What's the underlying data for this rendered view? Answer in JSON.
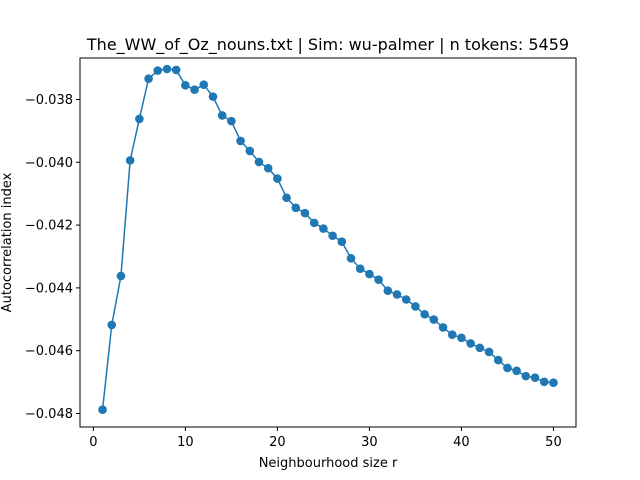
{
  "chart_data": {
    "type": "line",
    "title": "The_WW_of_Oz_nouns.txt | Sim: wu-palmer | n tokens: 5459",
    "xlabel": "Neighbourhood size r",
    "ylabel": "Autocorrelation index",
    "xlim": [
      -1.45,
      52.45
    ],
    "ylim": [
      -0.04843,
      -0.03668
    ],
    "xticks": [
      0,
      10,
      20,
      30,
      40,
      50
    ],
    "xtick_labels": [
      "0",
      "10",
      "20",
      "30",
      "40",
      "50"
    ],
    "yticks": [
      -0.048,
      -0.046,
      -0.044,
      -0.042,
      -0.04,
      -0.038
    ],
    "ytick_labels": [
      "−0.048",
      "−0.046",
      "−0.044",
      "−0.042",
      "−0.040",
      "−0.038"
    ],
    "grid": false,
    "series_color": "#1f77b4",
    "series": [
      {
        "x": [
          1,
          2,
          3,
          4,
          5,
          6,
          7,
          8,
          9,
          10,
          11,
          12,
          13,
          14,
          15,
          16,
          17,
          18,
          19,
          20,
          21,
          22,
          23,
          24,
          25,
          26,
          27,
          28,
          29,
          30,
          31,
          32,
          33,
          34,
          35,
          36,
          37,
          38,
          39,
          40,
          41,
          42,
          43,
          44,
          45,
          46,
          47,
          48,
          49,
          50
        ],
        "values": [
          -0.04788,
          -0.04518,
          -0.04362,
          -0.03994,
          -0.03862,
          -0.03734,
          -0.03708,
          -0.03703,
          -0.03706,
          -0.03755,
          -0.03769,
          -0.03753,
          -0.03791,
          -0.03851,
          -0.03869,
          -0.03932,
          -0.03964,
          -0.03999,
          -0.04019,
          -0.04052,
          -0.04113,
          -0.04145,
          -0.04162,
          -0.04193,
          -0.04211,
          -0.04234,
          -0.04253,
          -0.04306,
          -0.04339,
          -0.04356,
          -0.04374,
          -0.04409,
          -0.04421,
          -0.04437,
          -0.04459,
          -0.04484,
          -0.04501,
          -0.04526,
          -0.04549,
          -0.04559,
          -0.04577,
          -0.04591,
          -0.04604,
          -0.0463,
          -0.04655,
          -0.04664,
          -0.04681,
          -0.04686,
          -0.04699,
          -0.04702
        ]
      }
    ]
  }
}
